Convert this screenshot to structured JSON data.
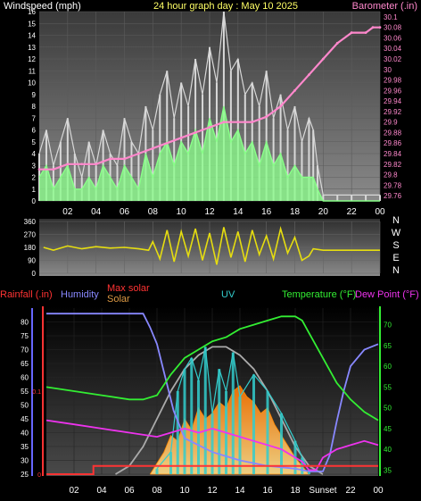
{
  "chart_data": [
    {
      "type": "line",
      "title": "24 hour graph day : May 10 2025",
      "left_axis_label": "Windspeed (mph)",
      "right_axis_label": "Barometer (.in)",
      "x_ticks": [
        "02",
        "04",
        "06",
        "08",
        "10",
        "12",
        "14",
        "16",
        "18",
        "20",
        "22",
        "00"
      ],
      "xlim": [
        0,
        24
      ],
      "y_left_ticks": [
        "0",
        "1",
        "2",
        "3",
        "4",
        "5",
        "6",
        "7",
        "8",
        "9",
        "10",
        "11",
        "12",
        "13",
        "14",
        "15",
        "16"
      ],
      "ylim_left": [
        0,
        16
      ],
      "y_right_ticks": [
        "29.76",
        "29.78",
        "29.8",
        "29.82",
        "29.84",
        "29.86",
        "29.88",
        "29.9",
        "29.92",
        "29.94",
        "29.96",
        "29.98",
        "30",
        "30.02",
        "30.04",
        "30.06",
        "30.08",
        "30.1"
      ],
      "ylim_right": [
        29.75,
        30.11
      ],
      "colors": {
        "gust": "#d8d8d8",
        "wind": "#88ff88",
        "barometer": "#ff88cc"
      },
      "barometer": {
        "x": [
          0,
          1,
          2,
          3,
          4,
          5,
          6,
          7,
          8,
          9,
          10,
          11,
          12,
          13,
          14,
          15,
          16,
          17,
          18,
          19,
          20,
          21,
          22,
          23,
          23.5,
          24
        ],
        "y": [
          29.81,
          29.81,
          29.82,
          29.82,
          29.82,
          29.83,
          29.83,
          29.84,
          29.85,
          29.86,
          29.87,
          29.88,
          29.89,
          29.9,
          29.9,
          29.9,
          29.91,
          29.93,
          29.96,
          29.99,
          30.02,
          30.05,
          30.07,
          30.07,
          30.08,
          30.08
        ]
      },
      "gust": {
        "x": [
          0,
          0.5,
          1,
          1.5,
          2,
          2.5,
          3,
          3.5,
          4,
          4.5,
          5,
          5.5,
          6,
          6.5,
          7,
          7.5,
          8,
          8.5,
          9,
          9.5,
          10,
          10.5,
          11,
          11.5,
          12,
          12.5,
          13,
          13.5,
          14,
          14.5,
          15,
          15.5,
          16,
          16.5,
          17,
          17.5,
          18,
          18.5,
          19,
          19.3,
          19.6,
          20,
          21,
          22,
          23,
          24
        ],
        "y": [
          4,
          6,
          3,
          5,
          7,
          4,
          2,
          5,
          3,
          6,
          4,
          3,
          7,
          5,
          4,
          8,
          6,
          9,
          11,
          7,
          10,
          8,
          12,
          9,
          13,
          10,
          16,
          11,
          12,
          9,
          10,
          8,
          11,
          7,
          9,
          6,
          8,
          5,
          7,
          6,
          3,
          0.5,
          0.5,
          0.5,
          0.5,
          0.5
        ]
      },
      "wind": {
        "x": [
          0,
          0.5,
          1,
          1.5,
          2,
          2.5,
          3,
          3.5,
          4,
          4.5,
          5,
          5.5,
          6,
          6.5,
          7,
          7.5,
          8,
          8.5,
          9,
          9.5,
          10,
          10.5,
          11,
          11.5,
          12,
          12.5,
          13,
          13.5,
          14,
          14.5,
          15,
          15.5,
          16,
          16.5,
          17,
          17.5,
          18,
          18.5,
          19,
          19.3,
          19.6,
          20,
          21,
          22,
          23,
          24
        ],
        "y": [
          2,
          3,
          1,
          2,
          3,
          1,
          1,
          2,
          1,
          3,
          2,
          1,
          3,
          2,
          1,
          4,
          2,
          4,
          5,
          3,
          5,
          4,
          6,
          4,
          7,
          5,
          8,
          5,
          6,
          4,
          5,
          3,
          5,
          3,
          4,
          2,
          3,
          2,
          2,
          2,
          1,
          0,
          0,
          0,
          0,
          0
        ]
      }
    },
    {
      "type": "line",
      "title": "",
      "y_ticks": [
        "360",
        "270",
        "180",
        "90",
        "0"
      ],
      "ylim": [
        0,
        360
      ],
      "compass_labels": [
        "N",
        "W",
        "S",
        "E",
        "N"
      ],
      "x_ticks": [],
      "xlim": [
        0,
        24
      ],
      "colors": {
        "direction": "#e6dd10"
      },
      "direction": {
        "x": [
          0.3,
          1,
          2,
          3,
          4,
          5,
          6,
          7,
          7.7,
          8,
          8.5,
          9,
          9.5,
          10,
          10.5,
          11,
          11.5,
          12,
          12.5,
          13,
          13.5,
          14,
          14.5,
          15,
          15.5,
          16,
          16.5,
          17,
          17.5,
          18,
          18.5,
          19,
          19.3,
          20,
          21,
          22,
          23,
          24
        ],
        "y": [
          180,
          160,
          190,
          170,
          185,
          175,
          180,
          170,
          160,
          220,
          100,
          300,
          80,
          290,
          120,
          310,
          90,
          280,
          60,
          320,
          110,
          290,
          80,
          300,
          130,
          260,
          100,
          310,
          140,
          250,
          90,
          120,
          170,
          160,
          160,
          160,
          160,
          160
        ]
      }
    },
    {
      "type": "line",
      "title": "",
      "legend": [
        "Rainfall (.in)",
        "Humidity",
        "Max solar",
        "Solar",
        "UV",
        "Temperature (°F)",
        "Dew Point (°F)"
      ],
      "x_ticks": [
        "02",
        "04",
        "06",
        "08",
        "10",
        "12",
        "14",
        "16",
        "18",
        "Sunset",
        "22",
        "00"
      ],
      "xlim": [
        0,
        24
      ],
      "y_rain_ticks": [
        "0",
        "0.1"
      ],
      "ylim_rain": [
        0,
        0.2
      ],
      "y_humidity_ticks": [
        "25",
        "30",
        "35",
        "40",
        "45",
        "50",
        "55",
        "60",
        "65",
        "70",
        "75",
        "80"
      ],
      "ylim_humidity": [
        25,
        85
      ],
      "y_temp_ticks": [
        "35",
        "40",
        "45",
        "50",
        "55",
        "60",
        "65",
        "70"
      ],
      "ylim_temp": [
        34,
        74
      ],
      "colors": {
        "rain": "#ff3333",
        "humidity": "#8888ff",
        "max_solar": "#aaaaaa",
        "solar": "#ff9900",
        "uv": "#33cccc",
        "temperature": "#33ee33",
        "dew_point": "#ee33ee"
      },
      "humidity": {
        "x": [
          0,
          2,
          4,
          6,
          7,
          7.5,
          8,
          8.4,
          8.8,
          9.2,
          10,
          12,
          14,
          16,
          18,
          19,
          20,
          20.5,
          21,
          21.5,
          22,
          23,
          24
        ],
        "y": [
          83,
          83,
          83,
          83,
          83,
          78,
          72,
          64,
          56,
          48,
          38,
          33,
          30,
          28,
          27,
          26,
          26,
          32,
          44,
          55,
          64,
          70,
          72
        ]
      },
      "temperature": {
        "x": [
          0,
          2,
          4,
          6,
          7,
          8,
          9,
          10,
          11,
          12,
          13,
          14,
          15,
          16,
          17,
          18,
          18.5,
          19,
          20,
          21,
          22,
          23,
          24
        ],
        "y": [
          55,
          54,
          53,
          52,
          52,
          53,
          58,
          62,
          64,
          66,
          67,
          69,
          70,
          71,
          72,
          72,
          71,
          68,
          62,
          56,
          52,
          49,
          47
        ]
      },
      "dew_point": {
        "x": [
          0,
          2,
          4,
          6,
          8,
          9,
          10,
          11,
          12,
          13,
          14,
          15,
          16,
          17,
          18,
          18.5,
          19,
          19.5,
          20,
          21,
          22,
          23,
          24
        ],
        "y": [
          47,
          46,
          45,
          44,
          43,
          44,
          45,
          44,
          45,
          44,
          43,
          42,
          41,
          40,
          38,
          37,
          35,
          35,
          38,
          40,
          41,
          42,
          41
        ]
      },
      "max_solar": {
        "x": [
          5,
          6,
          7,
          8,
          9,
          10,
          11,
          12,
          13,
          14,
          15,
          16,
          17,
          18,
          19,
          20
        ],
        "y": [
          0,
          3,
          10,
          20,
          30,
          38,
          43,
          46,
          46,
          43,
          38,
          30,
          20,
          10,
          3,
          0
        ]
      },
      "solar": {
        "x": [
          7.5,
          8,
          8.5,
          9,
          9.5,
          10,
          10.5,
          11,
          11.5,
          12,
          12.5,
          13,
          13.5,
          14,
          14.5,
          15,
          15.5,
          16,
          16.5,
          17,
          17.5,
          18,
          18.5,
          19
        ],
        "y": [
          0,
          4,
          8,
          14,
          12,
          20,
          16,
          24,
          20,
          22,
          26,
          24,
          30,
          32,
          28,
          26,
          22,
          24,
          18,
          14,
          10,
          6,
          3,
          0
        ]
      },
      "uv": {
        "x": [
          8,
          9,
          9.5,
          10,
          10.5,
          11,
          11.5,
          12,
          12.5,
          13,
          13.5,
          14,
          15,
          16,
          17,
          18,
          18.5,
          19
        ],
        "y": [
          2,
          8,
          30,
          38,
          42,
          34,
          46,
          22,
          38,
          30,
          44,
          28,
          36,
          30,
          22,
          12,
          6,
          1
        ]
      },
      "rain": {
        "x": [
          0,
          3.4,
          3.4,
          19.3,
          19.3,
          24
        ],
        "y": [
          0,
          0,
          0.01,
          0.01,
          0.01,
          0.01
        ]
      }
    }
  ]
}
